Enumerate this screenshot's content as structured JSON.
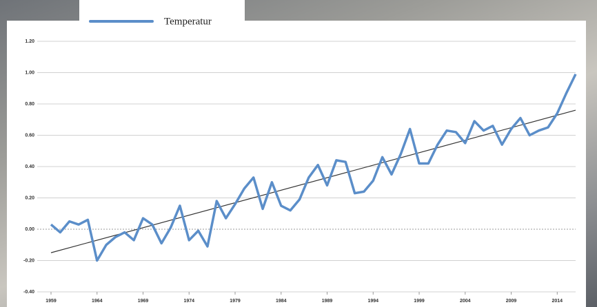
{
  "chart_data": {
    "type": "line",
    "x": [
      1959,
      1960,
      1961,
      1962,
      1963,
      1964,
      1965,
      1966,
      1967,
      1968,
      1969,
      1970,
      1971,
      1972,
      1973,
      1974,
      1975,
      1976,
      1977,
      1978,
      1979,
      1980,
      1981,
      1982,
      1983,
      1984,
      1985,
      1986,
      1987,
      1988,
      1989,
      1990,
      1991,
      1992,
      1993,
      1994,
      1995,
      1996,
      1997,
      1998,
      1999,
      2000,
      2001,
      2002,
      2003,
      2004,
      2005,
      2006,
      2007,
      2008,
      2009,
      2010,
      2011,
      2012,
      2013,
      2014,
      2015,
      2016
    ],
    "series": [
      {
        "name": "Temperatur",
        "color": "#5b8ec9",
        "values": [
          0.03,
          -0.02,
          0.05,
          0.03,
          0.06,
          -0.2,
          -0.1,
          -0.05,
          -0.02,
          -0.07,
          0.07,
          0.03,
          -0.09,
          0.01,
          0.15,
          -0.07,
          -0.01,
          -0.11,
          0.18,
          0.07,
          0.16,
          0.26,
          0.33,
          0.13,
          0.3,
          0.15,
          0.12,
          0.19,
          0.33,
          0.41,
          0.28,
          0.44,
          0.43,
          0.23,
          0.24,
          0.31,
          0.46,
          0.35,
          0.48,
          0.64,
          0.42,
          0.42,
          0.54,
          0.63,
          0.62,
          0.55,
          0.69,
          0.63,
          0.66,
          0.54,
          0.64,
          0.71,
          0.6,
          0.63,
          0.65,
          0.74,
          0.87,
          0.99
        ]
      }
    ],
    "trend": {
      "x": [
        1959,
        2016
      ],
      "values": [
        -0.15,
        0.76
      ],
      "color": "#333333"
    },
    "xlim": [
      1959,
      2016
    ],
    "xticks": [
      1959,
      1964,
      1969,
      1974,
      1979,
      1984,
      1989,
      1994,
      1999,
      2004,
      2009,
      2014
    ],
    "ylim": [
      -0.4,
      1.2
    ],
    "yticks": [
      {
        "value": -0.4,
        "label": "-0.40"
      },
      {
        "value": -0.2,
        "label": "-0.20"
      },
      {
        "value": 0,
        "label": "0.00"
      },
      {
        "value": 0.2,
        "label": "0.20"
      },
      {
        "value": 0.4,
        "label": "0.40"
      },
      {
        "value": 0.6,
        "label": "0.60"
      },
      {
        "value": 0.8,
        "label": "0.80"
      },
      {
        "value": 1.0,
        "label": "1.00"
      },
      {
        "value": 1.2,
        "label": "1.20"
      }
    ],
    "grid": true
  }
}
